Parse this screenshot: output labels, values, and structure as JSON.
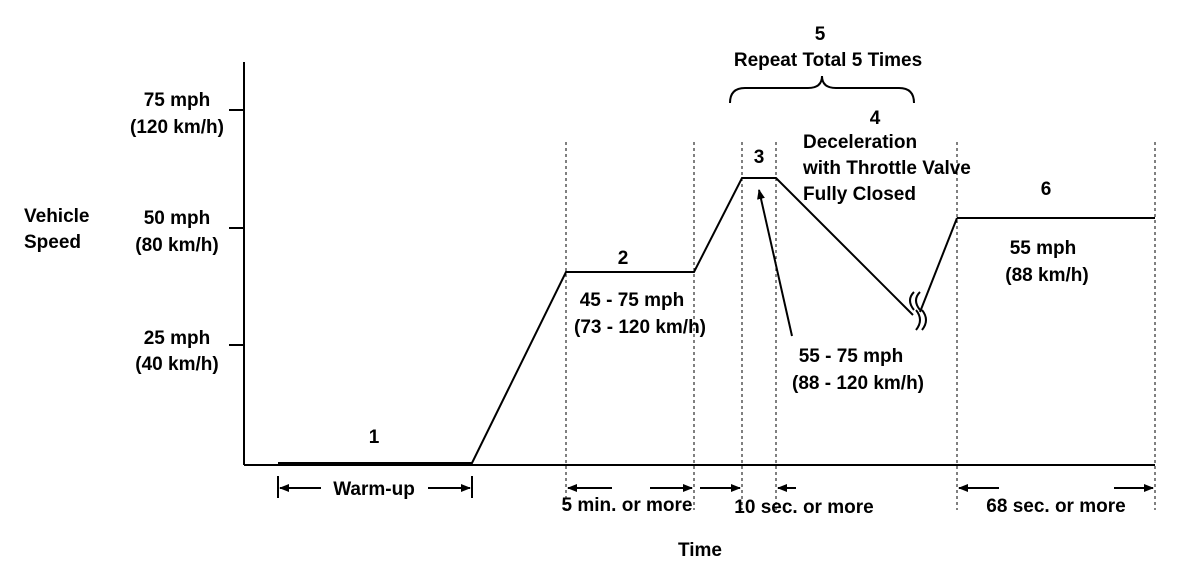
{
  "axis": {
    "y_title": [
      "Vehicle",
      "Speed"
    ],
    "x_title": "Time",
    "y_ticks": [
      {
        "mph": "75 mph",
        "kmh": "(120 km/h)"
      },
      {
        "mph": "50 mph",
        "kmh": "(80 km/h)"
      },
      {
        "mph": "25 mph",
        "kmh": "(40 km/h)"
      }
    ]
  },
  "stages": {
    "s1": "1",
    "s2": "2",
    "s3": "3",
    "s4": "4",
    "s5": "5",
    "s6": "6"
  },
  "annotations": {
    "repeat": "Repeat Total 5 Times",
    "decel": [
      "Deceleration",
      "with Throttle Valve",
      "Fully Closed"
    ],
    "stage2_speed": [
      "45 - 75 mph",
      "(73 - 120 km/h)"
    ],
    "stage3_speed": [
      "55 - 75 mph",
      "(88 - 120 km/h)"
    ],
    "stage6_speed": [
      "55 mph",
      "(88 km/h)"
    ]
  },
  "durations": {
    "warmup": "Warm-up",
    "stage2": "5 min. or more",
    "stage3": "10 sec. or more",
    "stage6": "68 sec. or more"
  }
}
